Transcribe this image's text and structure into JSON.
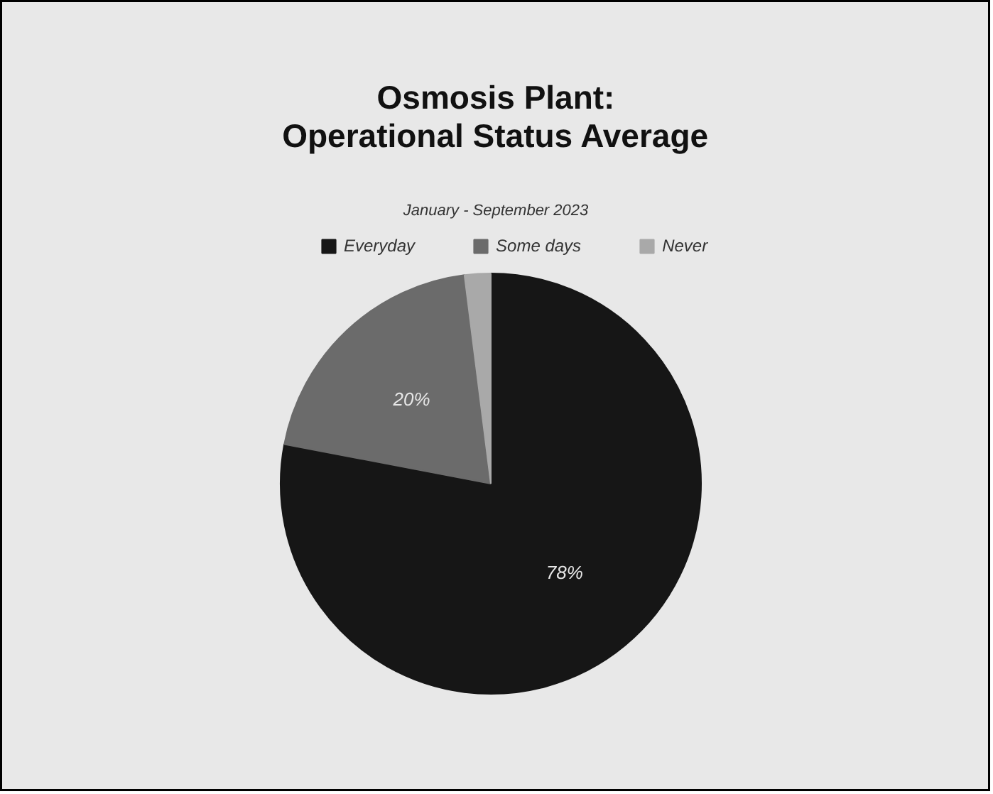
{
  "chart_data": {
    "type": "pie",
    "title": "Osmosis Plant:\nOperational Status Average",
    "subtitle": "January - September 2023",
    "categories": [
      "Everyday",
      "Some days",
      "Never"
    ],
    "values": [
      78,
      20,
      2
    ],
    "colors": [
      "#161616",
      "#6b6b6b",
      "#a9a9a9"
    ],
    "value_labels": [
      "78%",
      "20%",
      null
    ],
    "legend": "top"
  }
}
